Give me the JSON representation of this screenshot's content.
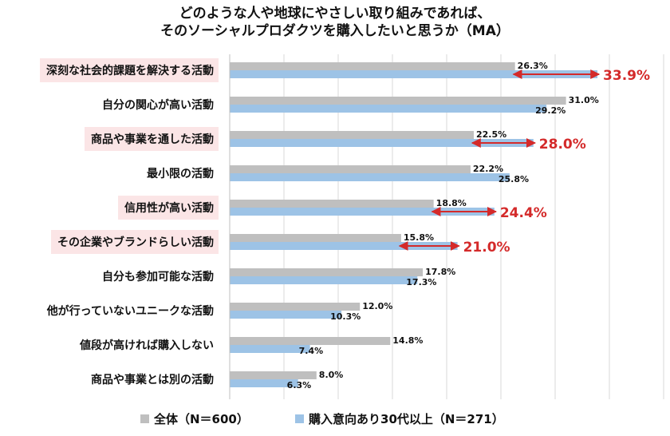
{
  "chart_data": {
    "type": "bar",
    "orientation": "horizontal",
    "title_lines": [
      "どのような人や地球にやさしい取り組みであれば、",
      "そのソーシャルプロダクツを購入したいと思うか（MA）"
    ],
    "categories": [
      "深刻な社会的課題を解決する活動",
      "自分の関心が高い活動",
      "商品や事業を通した活動",
      "最小限の活動",
      "信用性が高い活動",
      "その企業やブランドらしい活動",
      "自分も参加可能な活動",
      "他が行っていないユニークな活動",
      "値段が高ければ購入しない",
      "商品や事業とは別の活動"
    ],
    "highlighted": [
      true,
      false,
      true,
      false,
      true,
      true,
      false,
      false,
      false,
      false
    ],
    "series": [
      {
        "name": "全体（N＝600）",
        "values": [
          26.3,
          31.0,
          22.5,
          22.2,
          18.8,
          15.8,
          17.8,
          12.0,
          14.8,
          8.0
        ],
        "labels": [
          "26.3%",
          "31.0%",
          "22.5%",
          "22.2%",
          "18.8%",
          "15.8%",
          "17.8%",
          "12.0%",
          "14.8%",
          "8.0%"
        ]
      },
      {
        "name": "購入意向あり30代以上（N＝271）",
        "values": [
          33.9,
          29.2,
          28.0,
          25.8,
          24.4,
          21.0,
          17.3,
          10.3,
          7.4,
          6.3
        ],
        "labels": [
          "33.9%",
          "29.2%",
          "28.0%",
          "25.8%",
          "24.4%",
          "21.0%",
          "17.3%",
          "10.3%",
          "7.4%",
          "6.3%"
        ]
      }
    ],
    "xlim": [
      0,
      40
    ],
    "grid": true,
    "legend_position": "bottom",
    "colors": {
      "overall": "#bfbfbf",
      "target": "#9dc3e6",
      "highlight_bg": "#fbe5e6",
      "arrow": "#d42a2a",
      "grid": "#d9d9d9"
    }
  }
}
